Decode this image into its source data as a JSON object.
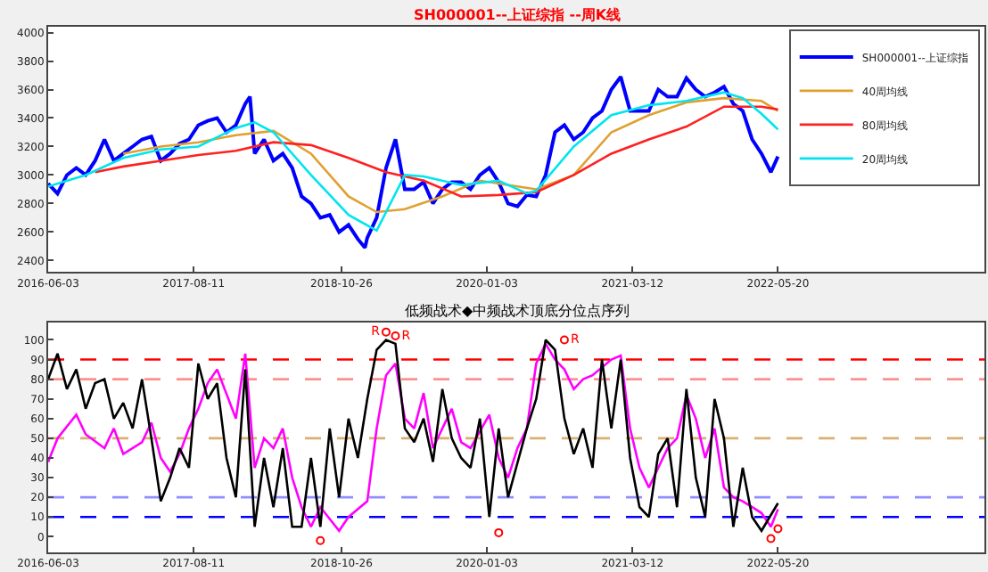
{
  "chart_data": [
    {
      "type": "line",
      "title": "SH000001--上证综指 --周K线",
      "xlim": [
        "2016-06-03",
        "2024-01-26"
      ],
      "xticks": [
        {
          "value": "2016-06-03",
          "label": "2016-06-03"
        },
        {
          "value": "2017-08-11",
          "label": "2017-08-11"
        },
        {
          "value": "2018-10-26",
          "label": "2018-10-26"
        },
        {
          "value": "2020-01-03",
          "label": "2020-01-03"
        },
        {
          "value": "2021-03-12",
          "label": "2021-03-12"
        },
        {
          "value": "2022-05-20",
          "label": "2022-05-20"
        }
      ],
      "ylim": [
        2320,
        4040
      ],
      "yticks": [
        2400,
        2600,
        2800,
        3000,
        3200,
        3400,
        3600,
        3800,
        4000
      ],
      "legend": "top right",
      "grid": false,
      "series": [
        {
          "name": "SH000001--上证综指",
          "color": "#0000ff",
          "x": [
            "2016-06-03",
            "2016-07-01",
            "2016-07-29",
            "2016-08-26",
            "2016-09-23",
            "2016-10-21",
            "2016-11-18",
            "2016-12-16",
            "2017-01-13",
            "2017-02-10",
            "2017-03-10",
            "2017-04-07",
            "2017-05-05",
            "2017-06-02",
            "2017-06-30",
            "2017-07-28",
            "2017-08-25",
            "2017-09-22",
            "2017-10-20",
            "2017-11-17",
            "2017-12-15",
            "2018-01-12",
            "2018-01-26",
            "2018-02-09",
            "2018-03-09",
            "2018-04-06",
            "2018-05-04",
            "2018-06-01",
            "2018-06-29",
            "2018-07-27",
            "2018-08-24",
            "2018-09-21",
            "2018-10-19",
            "2018-11-16",
            "2018-12-14",
            "2019-01-04",
            "2019-01-11",
            "2019-02-08",
            "2019-03-08",
            "2019-04-05",
            "2019-05-03",
            "2019-05-31",
            "2019-06-28",
            "2019-07-26",
            "2019-08-23",
            "2019-09-20",
            "2019-10-18",
            "2019-11-15",
            "2019-12-13",
            "2020-01-10",
            "2020-02-07",
            "2020-03-06",
            "2020-04-03",
            "2020-05-01",
            "2020-05-29",
            "2020-06-26",
            "2020-07-24",
            "2020-08-21",
            "2020-09-18",
            "2020-10-16",
            "2020-11-13",
            "2020-12-11",
            "2021-01-08",
            "2021-02-05",
            "2021-03-05",
            "2021-04-02",
            "2021-04-30",
            "2021-05-28",
            "2021-06-25",
            "2021-07-23",
            "2021-08-20",
            "2021-09-17",
            "2021-10-15",
            "2021-11-12",
            "2021-12-10",
            "2022-01-07",
            "2022-02-04",
            "2022-03-04",
            "2022-04-01",
            "2022-04-29",
            "2022-05-20"
          ],
          "values": [
            2940,
            2870,
            3000,
            3050,
            3000,
            3100,
            3250,
            3100,
            3150,
            3200,
            3250,
            3270,
            3100,
            3150,
            3220,
            3250,
            3350,
            3380,
            3400,
            3300,
            3350,
            3500,
            3550,
            3150,
            3250,
            3100,
            3150,
            3050,
            2850,
            2800,
            2700,
            2720,
            2600,
            2650,
            2550,
            2490,
            2560,
            2700,
            3050,
            3250,
            2900,
            2900,
            2950,
            2800,
            2900,
            2950,
            2950,
            2900,
            3000,
            3050,
            2950,
            2800,
            2780,
            2860,
            2850,
            3000,
            3300,
            3350,
            3250,
            3300,
            3400,
            3450,
            3600,
            3690,
            3450,
            3450,
            3450,
            3600,
            3550,
            3550,
            3680,
            3600,
            3550,
            3580,
            3620,
            3500,
            3450,
            3250,
            3150,
            3020,
            3130
          ]
        },
        {
          "name": "40周均线",
          "color": "#e0a030",
          "x": [
            "2017-01-13",
            "2017-05-05",
            "2017-08-25",
            "2017-12-15",
            "2018-04-06",
            "2018-07-27",
            "2018-11-16",
            "2019-02-08",
            "2019-05-03",
            "2019-08-23",
            "2019-12-13",
            "2020-04-03",
            "2020-05-29",
            "2020-09-18",
            "2021-01-08",
            "2021-04-30",
            "2021-08-20",
            "2021-12-10",
            "2022-04-01",
            "2022-05-20"
          ],
          "values": [
            3150,
            3200,
            3230,
            3280,
            3310,
            3150,
            2850,
            2740,
            2760,
            2850,
            2960,
            2920,
            2900,
            3000,
            3300,
            3420,
            3510,
            3540,
            3520,
            3450
          ]
        },
        {
          "name": "80周均线",
          "color": "#ff2020",
          "x": [
            "2016-10-21",
            "2017-01-13",
            "2017-05-05",
            "2017-08-25",
            "2017-12-15",
            "2018-04-06",
            "2018-07-27",
            "2018-11-16",
            "2019-03-08",
            "2019-06-28",
            "2019-10-18",
            "2020-02-07",
            "2020-05-29",
            "2020-09-18",
            "2021-01-08",
            "2021-04-30",
            "2021-08-20",
            "2021-12-10",
            "2022-04-01",
            "2022-05-20"
          ],
          "values": [
            3020,
            3060,
            3100,
            3140,
            3170,
            3230,
            3210,
            3120,
            3020,
            2960,
            2850,
            2860,
            2880,
            3000,
            3150,
            3250,
            3340,
            3480,
            3480,
            3460
          ]
        },
        {
          "name": "20周均线",
          "color": "#00e5ee",
          "x": [
            "2016-06-03",
            "2016-09-23",
            "2017-01-13",
            "2017-05-05",
            "2017-08-25",
            "2017-12-15",
            "2018-02-09",
            "2018-04-06",
            "2018-07-27",
            "2018-11-16",
            "2019-02-08",
            "2019-05-03",
            "2019-06-28",
            "2019-10-18",
            "2020-02-07",
            "2020-05-01",
            "2020-05-29",
            "2020-09-18",
            "2021-01-08",
            "2021-04-30",
            "2021-08-20",
            "2021-12-10",
            "2022-02-04",
            "2022-04-01",
            "2022-05-20"
          ],
          "values": [
            2920,
            3000,
            3120,
            3180,
            3200,
            3330,
            3370,
            3300,
            3000,
            2720,
            2610,
            3000,
            2990,
            2930,
            2960,
            2870,
            2890,
            3200,
            3420,
            3490,
            3520,
            3580,
            3540,
            3430,
            3320
          ]
        }
      ]
    },
    {
      "type": "line",
      "title": "低频战术◆中频战术顶底分位点序列",
      "xlim": [
        "2016-06-03",
        "2024-01-26"
      ],
      "xticks": [
        {
          "value": "2016-06-03",
          "label": "2016-06-03"
        },
        {
          "value": "2017-08-11",
          "label": "2017-08-11"
        },
        {
          "value": "2018-10-26",
          "label": "2018-10-26"
        },
        {
          "value": "2020-01-03",
          "label": "2020-01-03"
        },
        {
          "value": "2021-03-12",
          "label": "2021-03-12"
        },
        {
          "value": "2022-05-20",
          "label": "2022-05-20"
        }
      ],
      "ylim": [
        -8,
        109
      ],
      "yticks": [
        0,
        10,
        20,
        30,
        40,
        50,
        60,
        70,
        80,
        90,
        100
      ],
      "legend": false,
      "grid": false,
      "ref_lines": [
        {
          "axis": "y",
          "value": 90,
          "color": "#ff0000",
          "line_style": "dashed"
        },
        {
          "axis": "y",
          "value": 80,
          "color": "#ff9090",
          "line_style": "dashed"
        },
        {
          "axis": "y",
          "value": 50,
          "color": "#d8b070",
          "line_style": "dashed"
        },
        {
          "axis": "y",
          "value": 20,
          "color": "#9090ff",
          "line_style": "dashed"
        },
        {
          "axis": "y",
          "value": 10,
          "color": "#0000ff",
          "line_style": "dashed"
        }
      ],
      "series": [
        {
          "type": "scatter",
          "marker": "circle",
          "color": "#ff0000",
          "x": [
            "2019-03-08",
            "2019-04-05",
            "2020-08-21",
            "2018-08-24",
            "2020-02-07",
            "2022-05-20",
            "2022-04-29"
          ],
          "values": [
            104,
            102,
            100,
            -2,
            2,
            4,
            -1
          ],
          "value_labels": [
            "R",
            "R",
            "R",
            null,
            null,
            null,
            null
          ]
        },
        {
          "color": "#ff00ff",
          "x": [
            "2016-06-03",
            "2016-07-01",
            "2016-08-26",
            "2016-09-23",
            "2016-11-18",
            "2016-12-16",
            "2017-01-13",
            "2017-03-10",
            "2017-04-07",
            "2017-05-05",
            "2017-06-02",
            "2017-06-30",
            "2017-07-28",
            "2017-08-25",
            "2017-09-22",
            "2017-10-20",
            "2017-12-15",
            "2018-01-12",
            "2018-02-09",
            "2018-03-09",
            "2018-04-06",
            "2018-05-04",
            "2018-06-01",
            "2018-06-29",
            "2018-07-27",
            "2018-08-24",
            "2018-10-19",
            "2018-11-16",
            "2019-01-11",
            "2019-02-08",
            "2019-03-08",
            "2019-04-05",
            "2019-05-03",
            "2019-05-31",
            "2019-06-28",
            "2019-07-26",
            "2019-08-23",
            "2019-09-20",
            "2019-10-18",
            "2019-11-15",
            "2020-01-10",
            "2020-02-07",
            "2020-03-06",
            "2020-04-03",
            "2020-05-01",
            "2020-05-29",
            "2020-06-26",
            "2020-07-24",
            "2020-08-21",
            "2020-09-18",
            "2020-10-16",
            "2020-11-13",
            "2021-01-08",
            "2021-02-05",
            "2021-03-05",
            "2021-04-02",
            "2021-04-30",
            "2021-05-28",
            "2021-06-25",
            "2021-07-23",
            "2021-08-20",
            "2021-09-17",
            "2021-10-15",
            "2021-11-12",
            "2021-12-10",
            "2022-01-07",
            "2022-02-04",
            "2022-03-04",
            "2022-04-01",
            "2022-04-29",
            "2022-05-20"
          ],
          "values": [
            38,
            50,
            62,
            52,
            45,
            55,
            42,
            48,
            58,
            40,
            33,
            42,
            55,
            65,
            78,
            85,
            60,
            93,
            35,
            50,
            45,
            55,
            30,
            15,
            5,
            15,
            3,
            10,
            18,
            55,
            82,
            88,
            60,
            55,
            73,
            45,
            55,
            65,
            48,
            45,
            62,
            40,
            30,
            45,
            55,
            88,
            98,
            90,
            85,
            75,
            80,
            82,
            90,
            92,
            55,
            35,
            25,
            35,
            45,
            50,
            72,
            60,
            40,
            55,
            25,
            20,
            18,
            15,
            12,
            5,
            14
          ]
        },
        {
          "color": "#000000",
          "x": [
            "2016-06-03",
            "2016-07-01",
            "2016-07-29",
            "2016-08-26",
            "2016-09-23",
            "2016-10-21",
            "2016-11-18",
            "2016-12-16",
            "2017-01-13",
            "2017-02-10",
            "2017-03-10",
            "2017-04-07",
            "2017-05-05",
            "2017-06-02",
            "2017-06-30",
            "2017-07-28",
            "2017-08-25",
            "2017-09-22",
            "2017-10-20",
            "2017-11-17",
            "2017-12-15",
            "2018-01-12",
            "2018-02-09",
            "2018-03-09",
            "2018-04-06",
            "2018-05-04",
            "2018-06-01",
            "2018-06-29",
            "2018-07-27",
            "2018-08-24",
            "2018-09-21",
            "2018-10-19",
            "2018-11-16",
            "2018-12-14",
            "2019-01-11",
            "2019-02-08",
            "2019-03-08",
            "2019-04-05",
            "2019-05-03",
            "2019-05-31",
            "2019-06-28",
            "2019-07-26",
            "2019-08-23",
            "2019-09-20",
            "2019-10-18",
            "2019-11-15",
            "2019-12-13",
            "2020-01-10",
            "2020-02-07",
            "2020-03-06",
            "2020-05-01",
            "2020-05-29",
            "2020-06-26",
            "2020-07-24",
            "2020-08-21",
            "2020-09-18",
            "2020-10-16",
            "2020-11-13",
            "2020-12-11",
            "2021-01-08",
            "2021-02-05",
            "2021-03-05",
            "2021-04-02",
            "2021-04-30",
            "2021-05-28",
            "2021-06-25",
            "2021-07-23",
            "2021-08-20",
            "2021-09-17",
            "2021-10-15",
            "2021-11-12",
            "2021-12-10",
            "2022-01-07",
            "2022-02-04",
            "2022-03-04",
            "2022-04-01",
            "2022-05-20"
          ],
          "values": [
            80,
            93,
            75,
            85,
            65,
            78,
            80,
            60,
            68,
            55,
            80,
            50,
            18,
            30,
            45,
            35,
            88,
            70,
            78,
            40,
            20,
            85,
            5,
            40,
            15,
            45,
            5,
            5,
            40,
            5,
            55,
            20,
            60,
            40,
            70,
            95,
            100,
            98,
            55,
            48,
            60,
            38,
            75,
            50,
            40,
            35,
            60,
            10,
            55,
            20,
            55,
            70,
            100,
            95,
            60,
            42,
            55,
            35,
            90,
            55,
            90,
            40,
            15,
            10,
            42,
            50,
            15,
            75,
            30,
            10,
            70,
            50,
            5,
            35,
            10,
            3,
            17
          ]
        }
      ]
    }
  ]
}
